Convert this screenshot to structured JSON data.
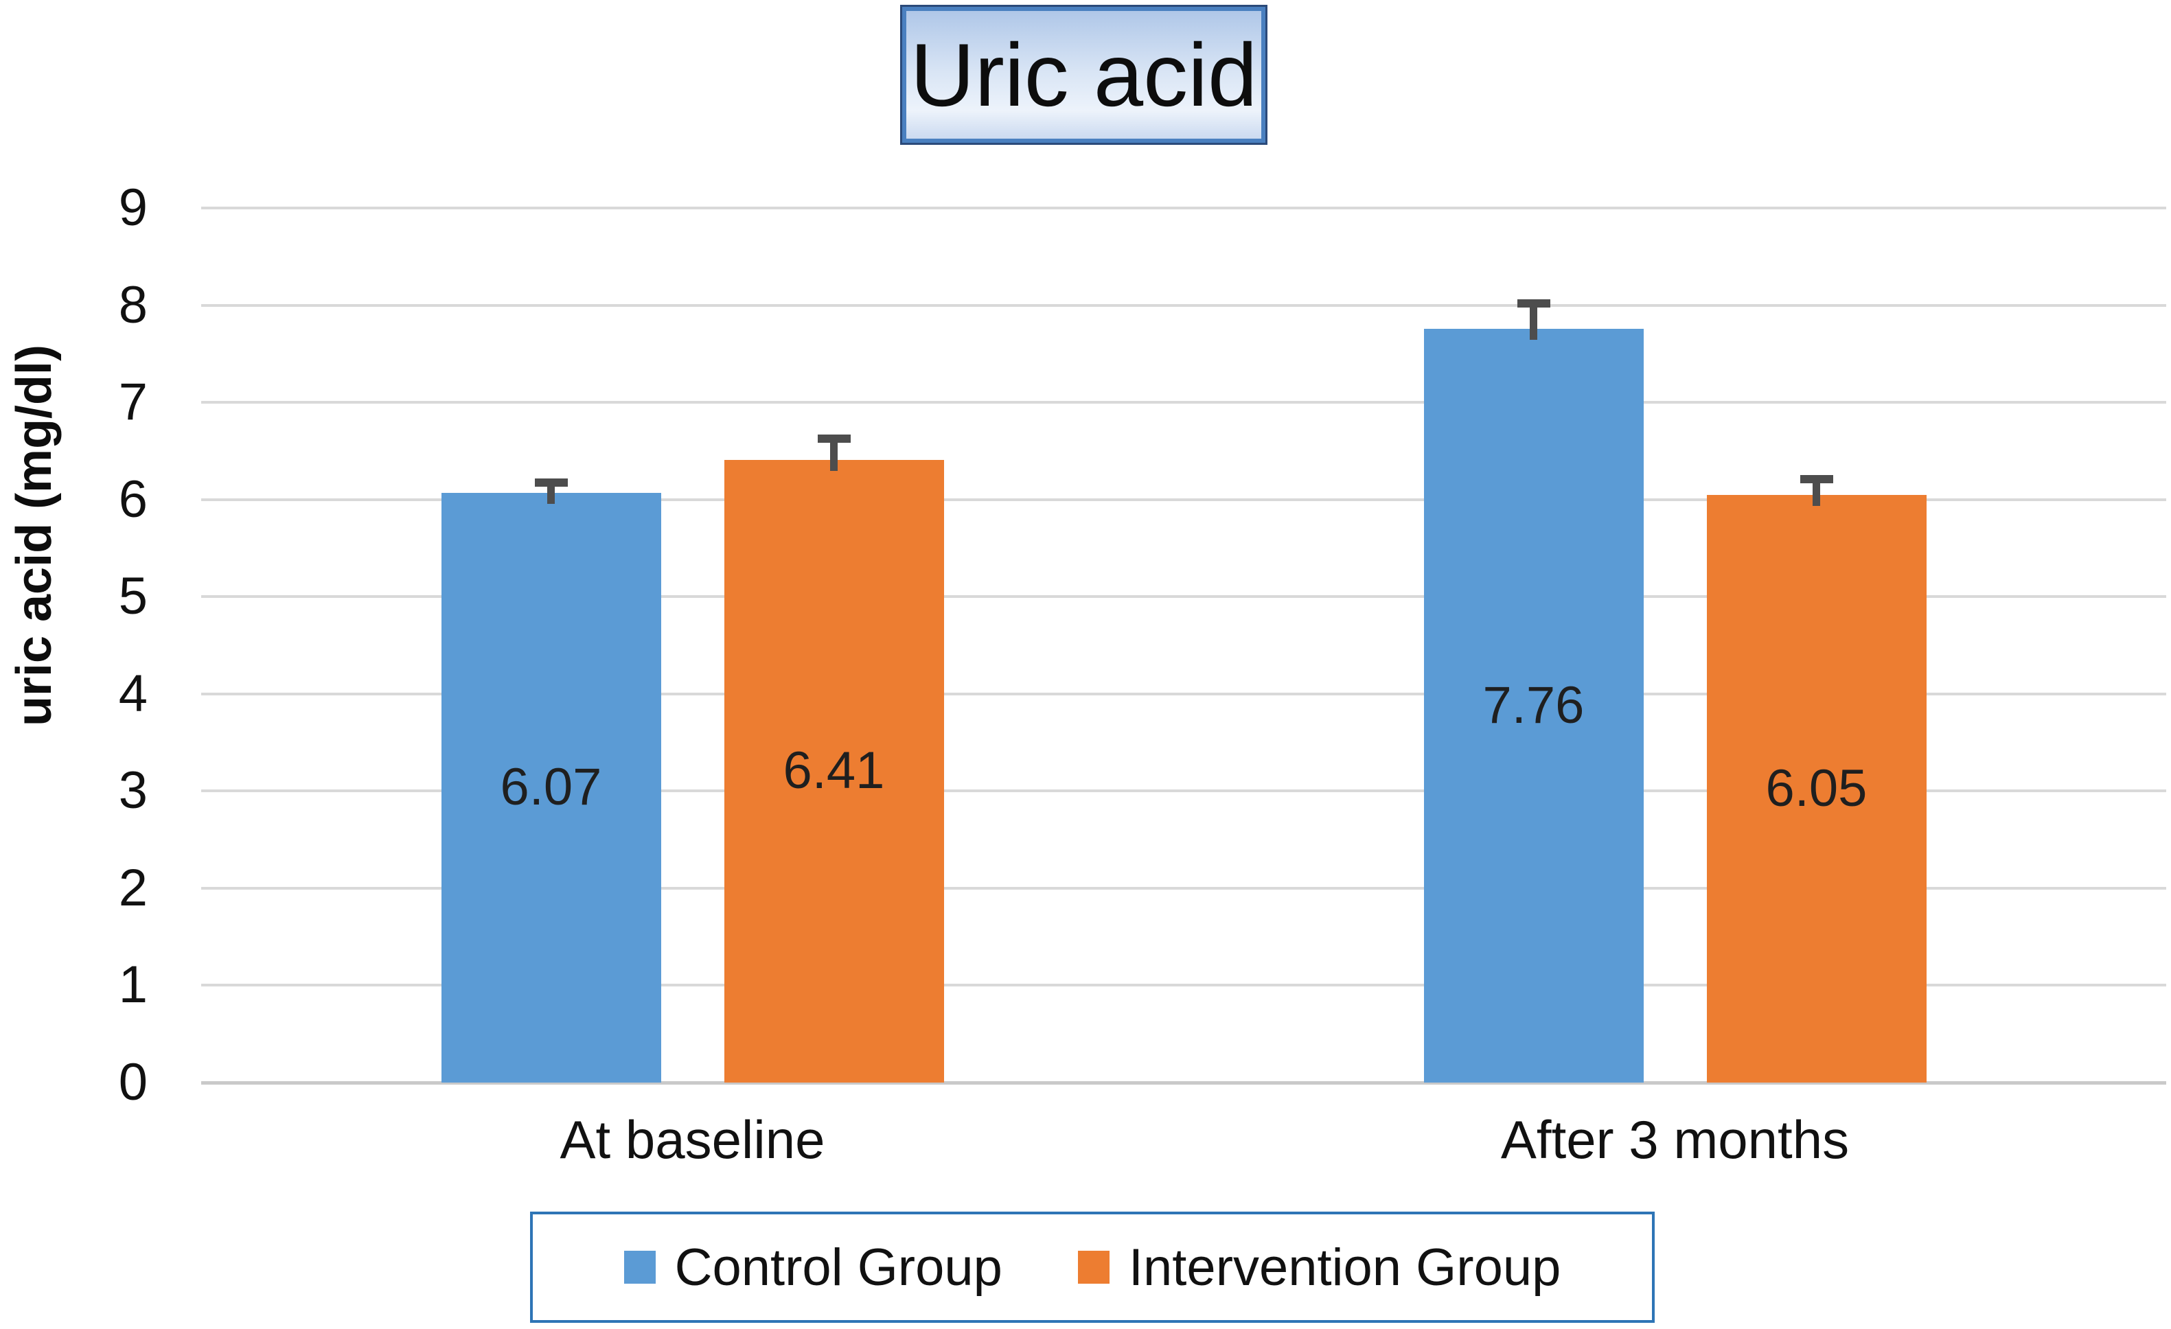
{
  "chart_data": {
    "type": "bar",
    "title": "Uric acid",
    "ylabel": "uric acid (mg/dl)",
    "xlabel": "",
    "categories": [
      "At baseline",
      "After 3 months"
    ],
    "series": [
      {
        "name": "Control Group",
        "color": "#5B9BD5",
        "values": [
          6.07,
          7.76
        ],
        "data_labels": [
          "6.07",
          "7.76"
        ],
        "error_up": [
          0.15,
          0.3
        ]
      },
      {
        "name": "Intervention Group",
        "color": "#ED7D31",
        "values": [
          6.41,
          6.05
        ],
        "data_labels": [
          "6.41",
          "6.05"
        ],
        "error_up": [
          0.26,
          0.2
        ]
      }
    ],
    "ylim": [
      0,
      9
    ],
    "ytick_step": 1,
    "ytick_labels": [
      "0",
      "1",
      "2",
      "3",
      "4",
      "5",
      "6",
      "7",
      "8",
      "9"
    ],
    "grid": true,
    "legend_position": "bottom",
    "style": {
      "gridline_color": "#D9D9D9",
      "baseline_color": "#C9C9C9",
      "error_bar_color": "#4D4D4D",
      "title_border_color": "#4A80C0",
      "title_outline_color": "#2B4A7A",
      "legend_border_color": "#2E75B6"
    }
  }
}
